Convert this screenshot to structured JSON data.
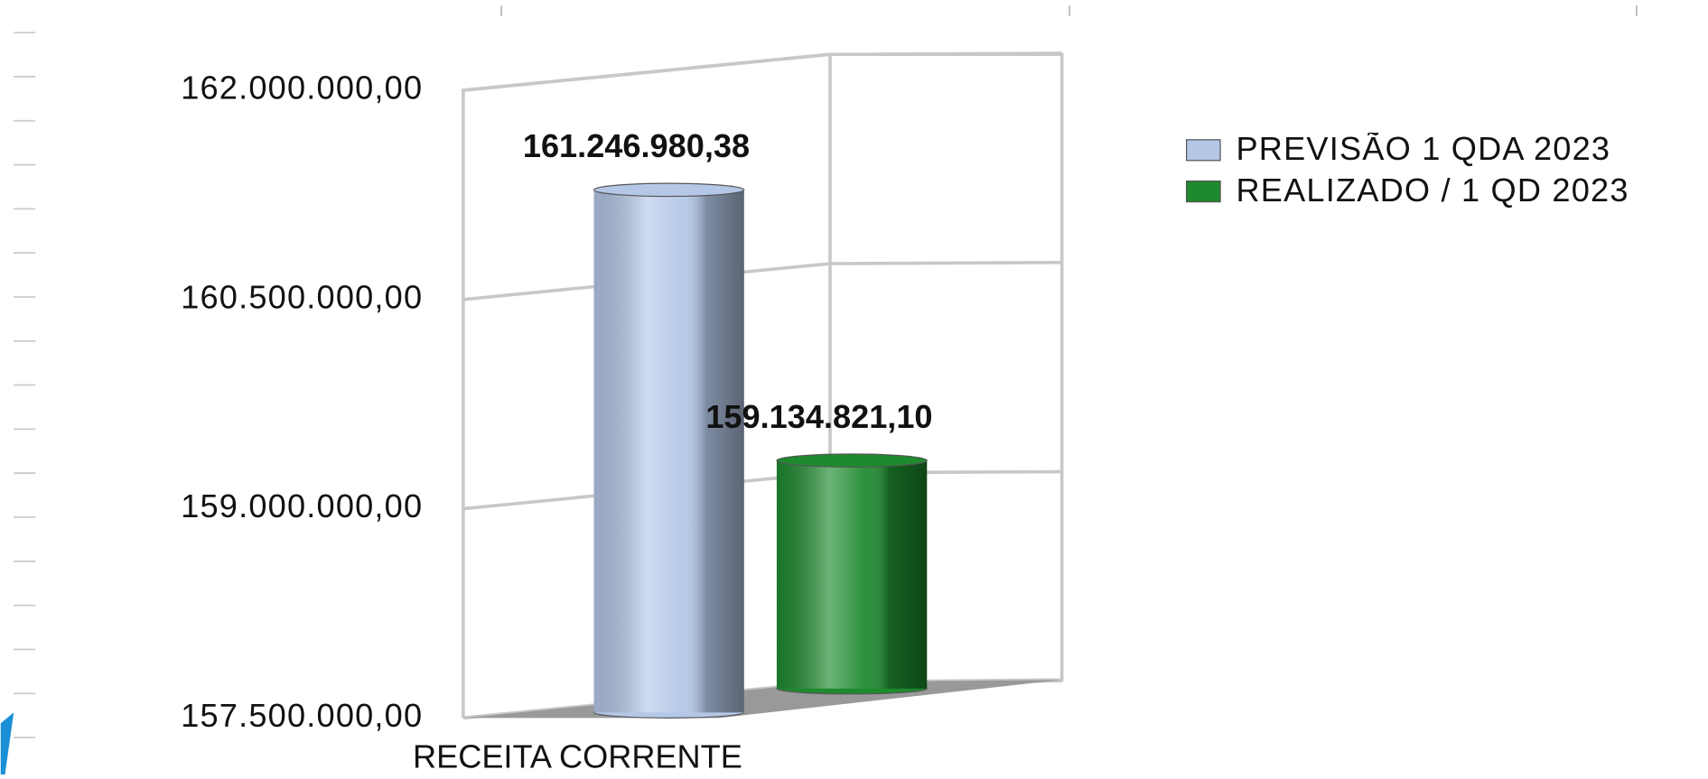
{
  "chart_data": {
    "type": "bar3d",
    "categories": [
      "RECEITA CORRENTE"
    ],
    "series": [
      {
        "name": "PREVISÃO 1 QDA 2023",
        "color": "#b4c7e7",
        "values": [
          161246980.38
        ],
        "value_labels": [
          "161.246.980,38"
        ]
      },
      {
        "name": "REALIZADO / 1 QD 2023",
        "color": "#1e8a2e",
        "values": [
          159134821.1
        ],
        "value_labels": [
          "159.134.821,10"
        ]
      }
    ],
    "ylim": [
      157500000,
      162000000
    ],
    "yticks": [
      {
        "value": 157500000,
        "label": "157.500.000,00"
      },
      {
        "value": 159000000,
        "label": "159.000.000,00"
      },
      {
        "value": 160500000,
        "label": "160.500.000,00"
      },
      {
        "value": 162000000,
        "label": "162.000.000,00"
      }
    ],
    "grid": true,
    "legend": "right"
  }
}
